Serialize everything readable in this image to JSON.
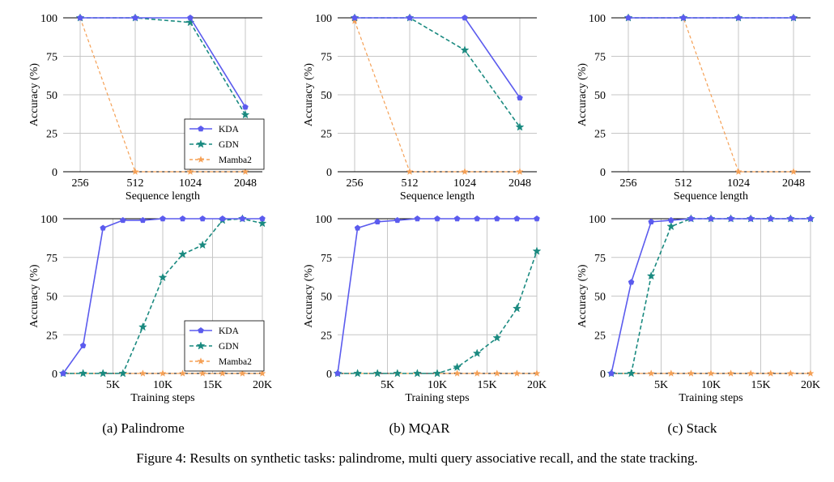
{
  "figure": {
    "caption": "Figure 4: Results on synthetic tasks: palindrome, multi query associative recall, and the state tracking.",
    "subcaptions": [
      "(a) Palindrome",
      "(b) MQAR",
      "(c) Stack"
    ]
  },
  "colors": {
    "KDA": "#5b5bee",
    "GDN": "#1a8a80",
    "Mamba2": "#f5a055"
  },
  "chart_data": [
    {
      "type": "line",
      "id": "palindrome-seq",
      "xlabel": "Sequence length",
      "ylabel": "Accuracy (%)",
      "categories": [
        "256",
        "512",
        "1024",
        "2048"
      ],
      "ylim": [
        0,
        100
      ],
      "yticks": [
        0,
        25,
        50,
        75,
        100
      ],
      "legend": "bottom-right",
      "series": [
        {
          "name": "KDA",
          "values": [
            100,
            100,
            100,
            42
          ]
        },
        {
          "name": "GDN",
          "values": [
            100,
            100,
            97,
            37
          ]
        },
        {
          "name": "Mamba2",
          "values": [
            100,
            0,
            0,
            0
          ]
        }
      ]
    },
    {
      "type": "line",
      "id": "mqar-seq",
      "xlabel": "Sequence length",
      "ylabel": "Accuracy (%)",
      "categories": [
        "256",
        "512",
        "1024",
        "2048"
      ],
      "ylim": [
        0,
        100
      ],
      "yticks": [
        0,
        25,
        50,
        75,
        100
      ],
      "legend": "none",
      "series": [
        {
          "name": "KDA",
          "values": [
            100,
            100,
            100,
            48
          ]
        },
        {
          "name": "GDN",
          "values": [
            100,
            100,
            79,
            29
          ]
        },
        {
          "name": "Mamba2",
          "values": [
            98,
            0,
            0,
            0
          ]
        }
      ]
    },
    {
      "type": "line",
      "id": "stack-seq",
      "xlabel": "Sequence length",
      "ylabel": "Accuracy (%)",
      "categories": [
        "256",
        "512",
        "1024",
        "2048"
      ],
      "ylim": [
        0,
        100
      ],
      "yticks": [
        0,
        25,
        50,
        75,
        100
      ],
      "legend": "none",
      "series": [
        {
          "name": "KDA",
          "values": [
            100,
            100,
            100,
            100
          ]
        },
        {
          "name": "GDN",
          "values": [
            100,
            100,
            100,
            100
          ]
        },
        {
          "name": "Mamba2",
          "values": [
            100,
            100,
            0,
            0
          ]
        }
      ]
    },
    {
      "type": "line",
      "id": "palindrome-steps",
      "xlabel": "Training steps",
      "ylabel": "Accuracy (%)",
      "x": [
        0,
        2000,
        4000,
        6000,
        8000,
        10000,
        12000,
        14000,
        16000,
        18000,
        20000
      ],
      "xlim": [
        0,
        20000
      ],
      "xticks": [
        5000,
        10000,
        15000,
        20000
      ],
      "xtick_labels": [
        "5K",
        "10K",
        "15K",
        "20K"
      ],
      "ylim": [
        0,
        100
      ],
      "yticks": [
        0,
        25,
        50,
        75,
        100
      ],
      "legend": "bottom-right",
      "series": [
        {
          "name": "KDA",
          "values": [
            0,
            18,
            94,
            99,
            99,
            100,
            100,
            100,
            100,
            100,
            100
          ]
        },
        {
          "name": "GDN",
          "values": [
            0,
            0,
            0,
            0,
            30,
            62,
            77,
            83,
            99,
            100,
            97
          ]
        },
        {
          "name": "Mamba2",
          "values": [
            0,
            0,
            0,
            0,
            0,
            0,
            0,
            0,
            0,
            0,
            0
          ]
        }
      ]
    },
    {
      "type": "line",
      "id": "mqar-steps",
      "xlabel": "Training steps",
      "ylabel": "Accuracy (%)",
      "x": [
        0,
        2000,
        4000,
        6000,
        8000,
        10000,
        12000,
        14000,
        16000,
        18000,
        20000
      ],
      "xlim": [
        0,
        20000
      ],
      "xticks": [
        5000,
        10000,
        15000,
        20000
      ],
      "xtick_labels": [
        "5K",
        "10K",
        "15K",
        "20K"
      ],
      "ylim": [
        0,
        100
      ],
      "yticks": [
        0,
        25,
        50,
        75,
        100
      ],
      "legend": "none",
      "series": [
        {
          "name": "KDA",
          "values": [
            0,
            94,
            98,
            99,
            100,
            100,
            100,
            100,
            100,
            100,
            100
          ]
        },
        {
          "name": "GDN",
          "values": [
            0,
            0,
            0,
            0,
            0,
            0,
            4,
            13,
            23,
            42,
            79
          ]
        },
        {
          "name": "Mamba2",
          "values": [
            0,
            0,
            0,
            0,
            0,
            0,
            0,
            0,
            0,
            0,
            0
          ]
        }
      ]
    },
    {
      "type": "line",
      "id": "stack-steps",
      "xlabel": "Training steps",
      "ylabel": "Accuracy (%)",
      "x": [
        0,
        2000,
        4000,
        6000,
        8000,
        10000,
        12000,
        14000,
        16000,
        18000,
        20000
      ],
      "xlim": [
        0,
        20000
      ],
      "xticks": [
        5000,
        10000,
        15000,
        20000
      ],
      "xtick_labels": [
        "5K",
        "10K",
        "15K",
        "20K"
      ],
      "ylim": [
        0,
        100
      ],
      "yticks": [
        0,
        25,
        50,
        75,
        100
      ],
      "legend": "none",
      "series": [
        {
          "name": "KDA",
          "values": [
            0,
            59,
            98,
            99,
            100,
            100,
            100,
            100,
            100,
            100,
            100
          ]
        },
        {
          "name": "GDN",
          "values": [
            0,
            0,
            63,
            95,
            100,
            100,
            100,
            100,
            100,
            100,
            100
          ]
        },
        {
          "name": "Mamba2",
          "values": [
            0,
            0,
            0,
            0,
            0,
            0,
            0,
            0,
            0,
            0,
            0
          ]
        }
      ]
    }
  ]
}
